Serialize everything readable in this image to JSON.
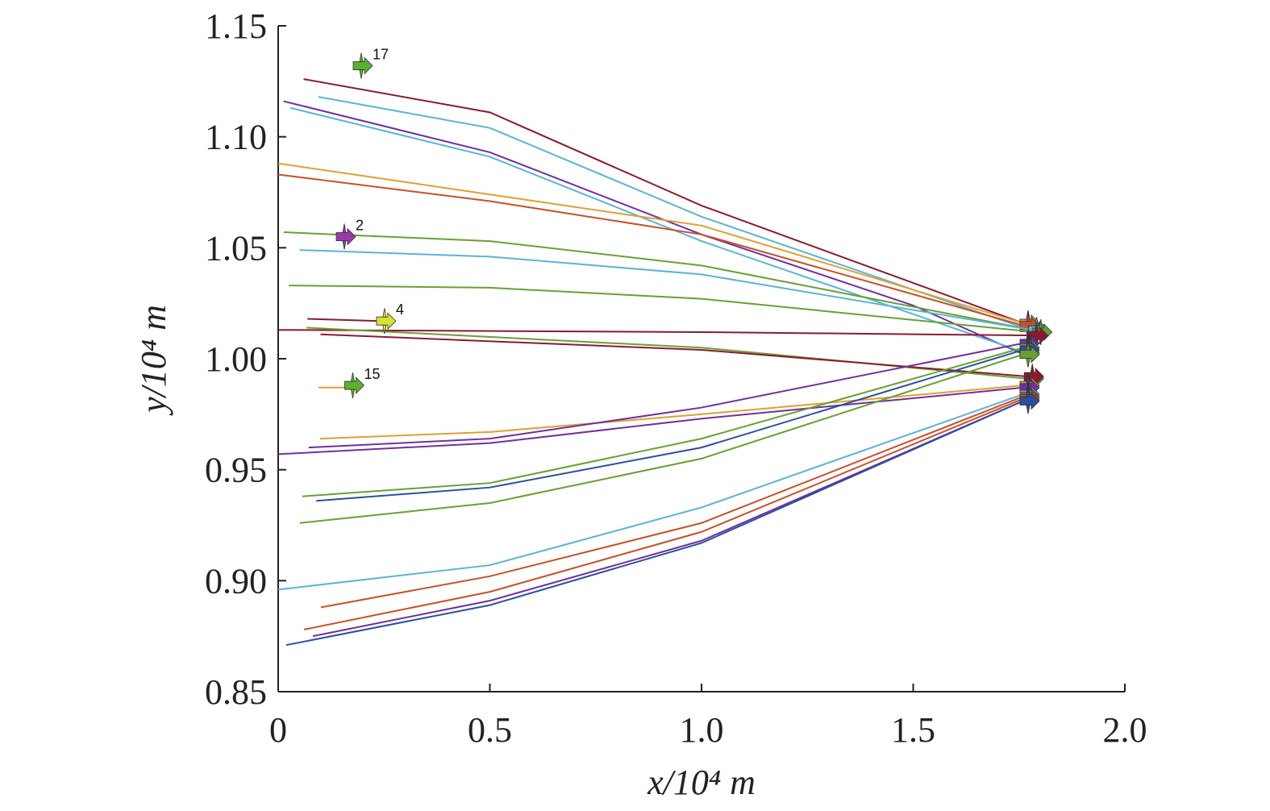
{
  "chart_data": {
    "type": "line",
    "x_label": "x/10⁴ m",
    "y_label": "y/10⁴ m",
    "xlim": [
      0,
      2
    ],
    "ylim": [
      0.85,
      1.15
    ],
    "xticks": [
      0,
      0.5,
      {
        "value": 1,
        "label": "1.0"
      },
      1.5,
      {
        "value": 2,
        "label": "2.0"
      }
    ],
    "yticks": [
      0.85,
      {
        "value": 0.9,
        "label": "0.90"
      },
      0.95,
      {
        "value": 1,
        "label": "1.00"
      },
      1.05,
      {
        "value": 1.1,
        "label": "1.10"
      },
      1.15
    ],
    "series": [
      {
        "color": "#8b1a2e",
        "x": [
          0.06,
          0.5,
          1.0,
          1.76
        ],
        "values": [
          1.126,
          1.111,
          1.069,
          1.016
        ]
      },
      {
        "color": "#5ab4d6",
        "x": [
          0.095,
          0.5,
          1.0,
          1.76
        ],
        "values": [
          1.118,
          1.104,
          1.064,
          1.014
        ]
      },
      {
        "color": "#7030a0",
        "x": [
          0.013,
          0.5,
          1.0,
          1.5,
          1.76
        ],
        "values": [
          1.116,
          1.093,
          1.056,
          1.024,
          1.002
        ]
      },
      {
        "color": "#5ab4d6",
        "x": [
          0.029,
          0.5,
          1.0,
          1.76
        ],
        "values": [
          1.113,
          1.091,
          1.053,
          1.003
        ]
      },
      {
        "color": "#e0a030",
        "x": [
          0,
          0.5,
          1.0,
          1.76
        ],
        "values": [
          1.088,
          1.074,
          1.06,
          1.016
        ]
      },
      {
        "color": "#c8502a",
        "x": [
          0,
          0.5,
          1.0,
          1.76
        ],
        "values": [
          1.083,
          1.071,
          1.056,
          1.015
        ]
      },
      {
        "color": "#6aa032",
        "x": [
          0.013,
          0.5,
          1.0,
          1.78
        ],
        "values": [
          1.057,
          1.053,
          1.042,
          1.013
        ]
      },
      {
        "color": "#5ab4d6",
        "x": [
          0.051,
          0.5,
          1.0,
          1.78
        ],
        "values": [
          1.049,
          1.046,
          1.038,
          1.013
        ]
      },
      {
        "color": "#6aa032",
        "x": [
          0.025,
          0.5,
          1.0,
          1.79
        ],
        "values": [
          1.033,
          1.032,
          1.027,
          1.012
        ]
      },
      {
        "color": "#8b1a2e",
        "x": [
          0.069,
          0.24
        ],
        "values": [
          1.018,
          1.017
        ]
      },
      {
        "color": "#8b1a2e",
        "x": [
          0,
          1.0,
          1.78
        ],
        "values": [
          1.013,
          1.012,
          1.0105
        ]
      },
      {
        "color": "#6aa032",
        "x": [
          0.067,
          1.0,
          1.77
        ],
        "values": [
          1.014,
          1.005,
          0.991
        ]
      },
      {
        "color": "#8b1a2e",
        "x": [
          0.1,
          1.0,
          1.77
        ],
        "values": [
          1.011,
          1.004,
          0.992
        ]
      },
      {
        "color": "#e0a030",
        "x": [
          0.095,
          0.17
        ],
        "values": [
          0.987,
          0.987
        ]
      },
      {
        "color": "#e0a030",
        "x": [
          0.099,
          0.5,
          1.0,
          1.76
        ],
        "values": [
          0.964,
          0.967,
          0.975,
          0.988
        ]
      },
      {
        "color": "#7030a0",
        "x": [
          0.072,
          0.5,
          1.0,
          1.76
        ],
        "values": [
          0.96,
          0.964,
          0.978,
          1.007
        ]
      },
      {
        "color": "#7030a0",
        "x": [
          0,
          0.5,
          1.0,
          1.76
        ],
        "values": [
          0.957,
          0.962,
          0.973,
          0.987
        ]
      },
      {
        "color": "#6aa032",
        "x": [
          0.057,
          0.5,
          1.0,
          1.76
        ],
        "values": [
          0.938,
          0.944,
          0.964,
          1.005
        ]
      },
      {
        "color": "#2b4fa0",
        "x": [
          0.09,
          0.5,
          1.0,
          1.76
        ],
        "values": [
          0.936,
          0.942,
          0.96,
          1.004
        ]
      },
      {
        "color": "#6aa032",
        "x": [
          0.051,
          0.5,
          1.0,
          1.76
        ],
        "values": [
          0.926,
          0.935,
          0.955,
          1.002
        ]
      },
      {
        "color": "#5ab4d6",
        "x": [
          0,
          0.5,
          1.0,
          1.76
        ],
        "values": [
          0.896,
          0.907,
          0.933,
          0.984
        ]
      },
      {
        "color": "#c8502a",
        "x": [
          0.101,
          0.5,
          1.0,
          1.76
        ],
        "values": [
          0.888,
          0.902,
          0.926,
          0.983
        ]
      },
      {
        "color": "#c8502a",
        "x": [
          0.061,
          0.5,
          1.0,
          1.76
        ],
        "values": [
          0.878,
          0.895,
          0.922,
          0.982
        ]
      },
      {
        "color": "#7030a0",
        "x": [
          0.082,
          0.5,
          1.0,
          1.76
        ],
        "values": [
          0.875,
          0.891,
          0.918,
          0.981
        ]
      },
      {
        "color": "#2b4fa0",
        "x": [
          0.019,
          0.5,
          1.0,
          1.76
        ],
        "values": [
          0.871,
          0.889,
          0.917,
          0.981
        ]
      }
    ],
    "markers": [
      {
        "label": "17",
        "color": "#5bb030",
        "x": 0.2,
        "y": 1.132
      },
      {
        "label": "2",
        "color": "#9a3aa8",
        "x": 0.16,
        "y": 1.055
      },
      {
        "label": "4",
        "color": "#d8e030",
        "x": 0.255,
        "y": 1.017
      },
      {
        "label": "15",
        "color": "#5bb030",
        "x": 0.18,
        "y": 0.988
      }
    ]
  }
}
